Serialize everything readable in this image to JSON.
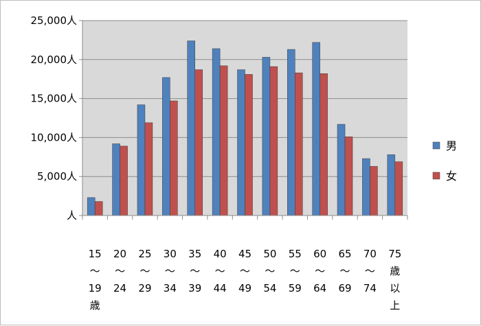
{
  "chart_data": {
    "type": "bar",
    "categories": [
      [
        "15",
        "〜",
        "19",
        "歳"
      ],
      [
        "20",
        "〜",
        "24"
      ],
      [
        "25",
        "〜",
        "29"
      ],
      [
        "30",
        "〜",
        "34"
      ],
      [
        "35",
        "〜",
        "39"
      ],
      [
        "40",
        "〜",
        "44"
      ],
      [
        "45",
        "〜",
        "49"
      ],
      [
        "50",
        "〜",
        "54"
      ],
      [
        "55",
        "〜",
        "59"
      ],
      [
        "60",
        "〜",
        "64"
      ],
      [
        "65",
        "〜",
        "69"
      ],
      [
        "70",
        "〜",
        "74"
      ],
      [
        "75",
        "歳",
        "以",
        "上"
      ]
    ],
    "series": [
      {
        "name": "男",
        "color": "#4f81bd",
        "values": [
          2300,
          9200,
          14200,
          17700,
          22400,
          21400,
          18700,
          20300,
          21300,
          22200,
          11700,
          7300,
          7800
        ]
      },
      {
        "name": "女",
        "color": "#c0504d",
        "values": [
          1800,
          8900,
          11900,
          14700,
          18700,
          19200,
          18100,
          19100,
          18300,
          18200,
          10100,
          6300,
          6900
        ]
      }
    ],
    "yticks": [
      "人",
      "5,000人",
      "10,000人",
      "15,000人",
      "20,000人",
      "25,000人"
    ],
    "ylim": [
      0,
      25000
    ],
    "grid": true,
    "legend_position": "right",
    "plot_background": "#d9d9d9"
  }
}
